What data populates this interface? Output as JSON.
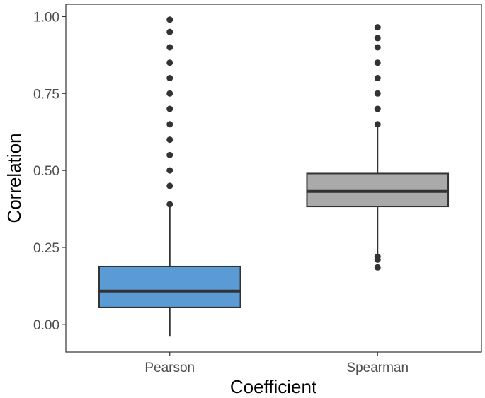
{
  "chart_data": {
    "type": "box",
    "title": "",
    "xlabel": "Coefficient",
    "ylabel": "Correlation",
    "ylim": [
      -0.09,
      1.04
    ],
    "yticks": [
      0.0,
      0.25,
      0.5,
      0.75,
      1.0
    ],
    "ytick_labels": [
      "0.00",
      "0.25",
      "0.50",
      "0.75",
      "1.00"
    ],
    "grid": false,
    "legend": "none",
    "categories": [
      "Pearson",
      "Spearman"
    ],
    "boxes": [
      {
        "category": "Pearson",
        "color": "#5b9bd5",
        "whisker_low": -0.04,
        "q1": 0.055,
        "median": 0.108,
        "q3": 0.188,
        "whisker_high": 0.385,
        "outliers_low": [],
        "outliers_high": [
          0.39,
          0.45,
          0.5,
          0.55,
          0.6,
          0.65,
          0.7,
          0.75,
          0.8,
          0.85,
          0.9,
          0.95,
          0.99
        ]
      },
      {
        "category": "Spearman",
        "color": "#aaaaaa",
        "whisker_low": 0.23,
        "q1": 0.383,
        "median": 0.432,
        "q3": 0.49,
        "whisker_high": 0.645,
        "outliers_low": [
          0.22,
          0.21,
          0.185
        ],
        "outliers_high": [
          0.65,
          0.7,
          0.75,
          0.8,
          0.85,
          0.9,
          0.93,
          0.965
        ]
      }
    ]
  }
}
